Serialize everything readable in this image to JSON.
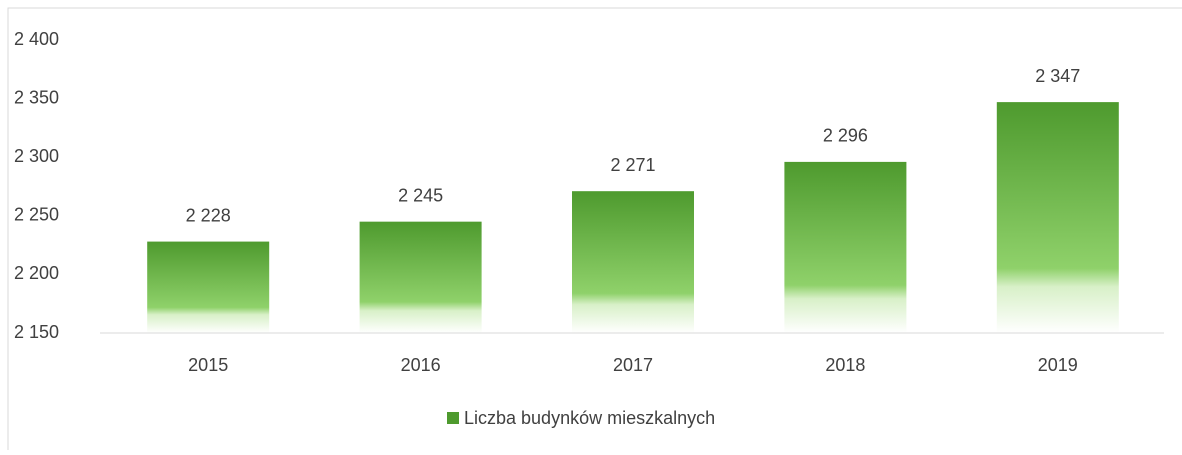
{
  "chart_data": {
    "type": "bar",
    "categories": [
      "2015",
      "2016",
      "2017",
      "2018",
      "2019"
    ],
    "series": [
      {
        "name": "Liczba budynków mieszkalnych",
        "color": "#4e9a2e",
        "values": [
          2228,
          2245,
          2271,
          2296,
          2347
        ],
        "value_labels": [
          "2 228",
          "2 245",
          "2 271",
          "2 296",
          "2 347"
        ]
      }
    ],
    "ylim": [
      2150,
      2400
    ],
    "yticks": [
      {
        "value": 2150,
        "label": "2 150"
      },
      {
        "value": 2200,
        "label": "2 200"
      },
      {
        "value": 2250,
        "label": "2 250"
      },
      {
        "value": 2300,
        "label": "2 300"
      },
      {
        "value": 2350,
        "label": "2 350"
      },
      {
        "value": 2400,
        "label": "2 400"
      }
    ],
    "grid": false,
    "legend": "bottom"
  }
}
